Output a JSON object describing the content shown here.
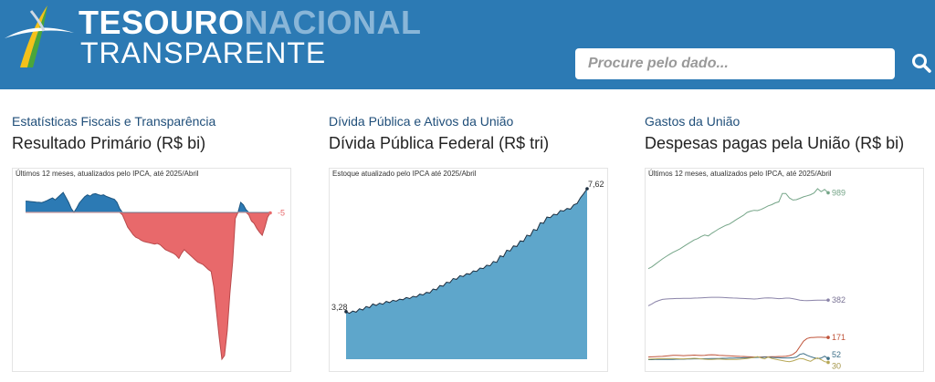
{
  "header": {
    "brand_word1": "Tesouro",
    "brand_word2": "Nacional",
    "brand_line2": "Transparente",
    "search_placeholder": "Procure pelo dado...",
    "search_icon": "search-icon",
    "colors": {
      "bar": "#2c7ab4",
      "brand_light": "#89b6d8"
    }
  },
  "cards": [
    {
      "category": "Estatísticas Fiscais e Transparência",
      "title": "Resultado Primário (R$ bi)",
      "note": "Últimos 12 meses, atualizados pelo IPCA, até 2025/Abril"
    },
    {
      "category": "Dívida Pública e Ativos da União",
      "title": "Dívida Pública Federal (R$ tri)",
      "note": "Estoque atualizado pelo IPCA até 2025/Abril"
    },
    {
      "category": "Gastos da União",
      "title": "Despesas pagas pela União (R$ bi)",
      "note": "Últimos 12 meses, atualizados pelo IPCA, até 2025/Abril"
    }
  ],
  "chart_data": [
    {
      "type": "area",
      "last_label": "-5",
      "values": [
        90,
        88,
        86,
        84,
        82,
        80,
        78,
        85,
        95,
        105,
        115,
        100,
        120,
        140,
        160,
        120,
        80,
        30,
        0,
        35,
        75,
        100,
        125,
        140,
        130,
        145,
        150,
        142,
        135,
        140,
        128,
        120,
        112,
        105,
        80,
        30,
        -20,
        -70,
        -120,
        -150,
        -180,
        -200,
        -210,
        -225,
        -235,
        -240,
        -245,
        -250,
        -255,
        -250,
        -260,
        -280,
        -300,
        -310,
        -320,
        -330,
        -345,
        -370,
        -330,
        -300,
        -320,
        -340,
        -360,
        -380,
        -400,
        -410,
        -420,
        -440,
        -460,
        -475,
        -600,
        -800,
        -1000,
        -1180,
        -1150,
        -950,
        -650,
        -400,
        -50,
        0,
        80,
        60,
        20,
        -20,
        -70,
        -90,
        -130,
        -160,
        -185,
        -120,
        -40,
        -5
      ],
      "ylim": [
        -1180,
        160
      ],
      "colors": {
        "positive": "#2c7ab4",
        "negative": "#e8696b",
        "positive_line": "#1c5580",
        "negative_line": "#b94a4c",
        "last_point": "#e8696b"
      }
    },
    {
      "type": "area",
      "first_label": "3,28",
      "last_label": "7,62",
      "values": [
        3.28,
        3.22,
        3.3,
        3.26,
        3.38,
        3.34,
        3.46,
        3.42,
        3.55,
        3.5,
        3.58,
        3.54,
        3.64,
        3.6,
        3.68,
        3.65,
        3.72,
        3.7,
        3.78,
        3.74,
        3.82,
        3.8,
        3.9,
        3.87,
        3.96,
        3.94,
        4.08,
        4.05,
        4.2,
        4.18,
        4.32,
        4.3,
        4.45,
        4.42,
        4.55,
        4.52,
        4.62,
        4.6,
        4.72,
        4.7,
        4.82,
        4.8,
        4.92,
        4.9,
        5.05,
        5.02,
        5.25,
        5.22,
        5.45,
        5.42,
        5.6,
        5.58,
        5.78,
        5.76,
        5.98,
        5.95,
        6.18,
        6.15,
        6.42,
        6.4,
        6.62,
        6.6,
        6.72,
        6.7,
        6.85,
        6.83,
        6.92,
        6.9,
        7.05,
        7.1,
        7.3,
        7.45,
        7.62
      ],
      "ylim": [
        1.6,
        7.62
      ],
      "colors": {
        "fill": "#5ea6cb",
        "line": "#1d2e3f",
        "point": "#1d2e3f"
      }
    },
    {
      "type": "line",
      "series": [
        {
          "last_label": "989",
          "values": [
            560,
            570,
            585,
            600,
            615,
            628,
            640,
            652,
            662,
            672,
            685,
            698,
            710,
            722,
            730,
            742,
            750,
            745,
            760,
            772,
            785,
            795,
            805,
            812,
            825,
            838,
            850,
            862,
            878,
            885,
            890,
            888,
            895,
            905,
            915,
            922,
            932,
            938,
            985,
            985,
            960,
            948,
            950,
            958,
            966,
            972,
            978,
            988,
            1012,
            995,
            1008,
            989
          ],
          "color": "#75a588",
          "label_color": "#75a588"
        },
        {
          "last_label": "382",
          "values": [
            350,
            360,
            372,
            380,
            386,
            388,
            389,
            390,
            391,
            391,
            392,
            392,
            392,
            393,
            394,
            395,
            396,
            397,
            398,
            398,
            398,
            397,
            396,
            395,
            394,
            393,
            392,
            391,
            390,
            389,
            388,
            389,
            392,
            394,
            395,
            394,
            392,
            390,
            391,
            393,
            393,
            390,
            386,
            382,
            380,
            379,
            380,
            381,
            382,
            382,
            382,
            382
          ],
          "color": "#8a83a8",
          "label_color": "#7a7395"
        },
        {
          "last_label": "171",
          "values": [
            60,
            61,
            62,
            63,
            64,
            66,
            68,
            70,
            70,
            69,
            68,
            69,
            70,
            71,
            70,
            69,
            70,
            72,
            73,
            72,
            70,
            69,
            68,
            67,
            66,
            65,
            64,
            63,
            62,
            61,
            60,
            60,
            60,
            61,
            61,
            62,
            62,
            63,
            63,
            65,
            68,
            75,
            90,
            120,
            150,
            165,
            170,
            171,
            172,
            172,
            171,
            171
          ],
          "color": "#c0543a",
          "label_color": "#c0543a"
        },
        {
          "last_label": "52",
          "values": [
            45,
            45,
            46,
            46,
            46,
            47,
            47,
            47,
            48,
            48,
            48,
            49,
            49,
            50,
            50,
            50,
            51,
            51,
            52,
            52,
            52,
            53,
            53,
            54,
            54,
            55,
            55,
            56,
            56,
            57,
            57,
            58,
            58,
            59,
            59,
            58,
            57,
            56,
            55,
            55,
            55,
            56,
            60,
            75,
            80,
            70,
            62,
            56,
            52,
            54,
            65,
            52
          ],
          "color": "#3d6f87",
          "label_color": "#3d6f87"
        },
        {
          "last_label": "30",
          "values": [
            48,
            49,
            50,
            51,
            51,
            52,
            52,
            52,
            51,
            50,
            50,
            51,
            52,
            53,
            52,
            50,
            48,
            47,
            47,
            48,
            49,
            48,
            47,
            46,
            46,
            47,
            48,
            50,
            52,
            55,
            58,
            62,
            55,
            50,
            60,
            52,
            48,
            44,
            40,
            36,
            34,
            38,
            45,
            52,
            50,
            42,
            36,
            48,
            55,
            45,
            34,
            30
          ],
          "color": "#b7a857",
          "label_color": "#a39445"
        }
      ],
      "ylim": [
        22,
        1012
      ]
    }
  ]
}
